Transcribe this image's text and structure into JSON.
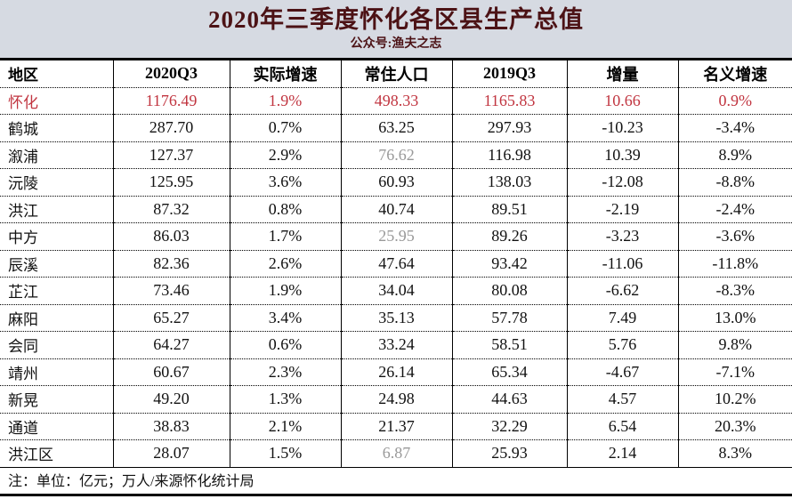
{
  "title": "2020年三季度怀化各区县生产总值",
  "subtitle": "公众号:渔夫之志",
  "footnote": "注：单位：亿元；万人/来源怀化统计局",
  "colors": {
    "title_text": "#4c1215",
    "highlight_row_text": "#c13540",
    "muted_value_text": "#999999",
    "band_background": "#d6dae2",
    "body_text": "#111111"
  },
  "chart_data": {
    "type": "table",
    "title": "2020年三季度怀化各区县生产总值",
    "columns": [
      "地区",
      "2020Q3",
      "实际增速",
      "常住人口",
      "2019Q3",
      "增量",
      "名义增速"
    ],
    "rows": [
      {
        "region": "怀化",
        "gdp_2020q3": "1176.49",
        "real_growth": "1.9%",
        "population": "498.33",
        "gdp_2019q3": "1165.83",
        "increment": "10.66",
        "nominal_growth": "0.9%",
        "highlight": true,
        "population_muted": false
      },
      {
        "region": "鹤城",
        "gdp_2020q3": "287.70",
        "real_growth": "0.7%",
        "population": "63.25",
        "gdp_2019q3": "297.93",
        "increment": "-10.23",
        "nominal_growth": "-3.4%",
        "highlight": false,
        "population_muted": false
      },
      {
        "region": "溆浦",
        "gdp_2020q3": "127.37",
        "real_growth": "2.9%",
        "population": "76.62",
        "gdp_2019q3": "116.98",
        "increment": "10.39",
        "nominal_growth": "8.9%",
        "highlight": false,
        "population_muted": true
      },
      {
        "region": "沅陵",
        "gdp_2020q3": "125.95",
        "real_growth": "3.6%",
        "population": "60.93",
        "gdp_2019q3": "138.03",
        "increment": "-12.08",
        "nominal_growth": "-8.8%",
        "highlight": false,
        "population_muted": false
      },
      {
        "region": "洪江",
        "gdp_2020q3": "87.32",
        "real_growth": "0.8%",
        "population": "40.74",
        "gdp_2019q3": "89.51",
        "increment": "-2.19",
        "nominal_growth": "-2.4%",
        "highlight": false,
        "population_muted": false
      },
      {
        "region": "中方",
        "gdp_2020q3": "86.03",
        "real_growth": "1.7%",
        "population": "25.95",
        "gdp_2019q3": "89.26",
        "increment": "-3.23",
        "nominal_growth": "-3.6%",
        "highlight": false,
        "population_muted": true
      },
      {
        "region": "辰溪",
        "gdp_2020q3": "82.36",
        "real_growth": "2.6%",
        "population": "47.64",
        "gdp_2019q3": "93.42",
        "increment": "-11.06",
        "nominal_growth": "-11.8%",
        "highlight": false,
        "population_muted": false
      },
      {
        "region": "芷江",
        "gdp_2020q3": "73.46",
        "real_growth": "1.9%",
        "population": "34.04",
        "gdp_2019q3": "80.08",
        "increment": "-6.62",
        "nominal_growth": "-8.3%",
        "highlight": false,
        "population_muted": false
      },
      {
        "region": "麻阳",
        "gdp_2020q3": "65.27",
        "real_growth": "3.4%",
        "population": "35.13",
        "gdp_2019q3": "57.78",
        "increment": "7.49",
        "nominal_growth": "13.0%",
        "highlight": false,
        "population_muted": false
      },
      {
        "region": "会同",
        "gdp_2020q3": "64.27",
        "real_growth": "0.6%",
        "population": "33.24",
        "gdp_2019q3": "58.51",
        "increment": "5.76",
        "nominal_growth": "9.8%",
        "highlight": false,
        "population_muted": false
      },
      {
        "region": "靖州",
        "gdp_2020q3": "60.67",
        "real_growth": "2.3%",
        "population": "26.14",
        "gdp_2019q3": "65.34",
        "increment": "-4.67",
        "nominal_growth": "-7.1%",
        "highlight": false,
        "population_muted": false
      },
      {
        "region": "新晃",
        "gdp_2020q3": "49.20",
        "real_growth": "1.3%",
        "population": "24.98",
        "gdp_2019q3": "44.63",
        "increment": "4.57",
        "nominal_growth": "10.2%",
        "highlight": false,
        "population_muted": false
      },
      {
        "region": "通道",
        "gdp_2020q3": "38.83",
        "real_growth": "2.1%",
        "population": "21.37",
        "gdp_2019q3": "32.29",
        "increment": "6.54",
        "nominal_growth": "20.3%",
        "highlight": false,
        "population_muted": false
      },
      {
        "region": "洪江区",
        "gdp_2020q3": "28.07",
        "real_growth": "1.5%",
        "population": "6.87",
        "gdp_2019q3": "25.93",
        "increment": "2.14",
        "nominal_growth": "8.3%",
        "highlight": false,
        "population_muted": true
      }
    ]
  }
}
